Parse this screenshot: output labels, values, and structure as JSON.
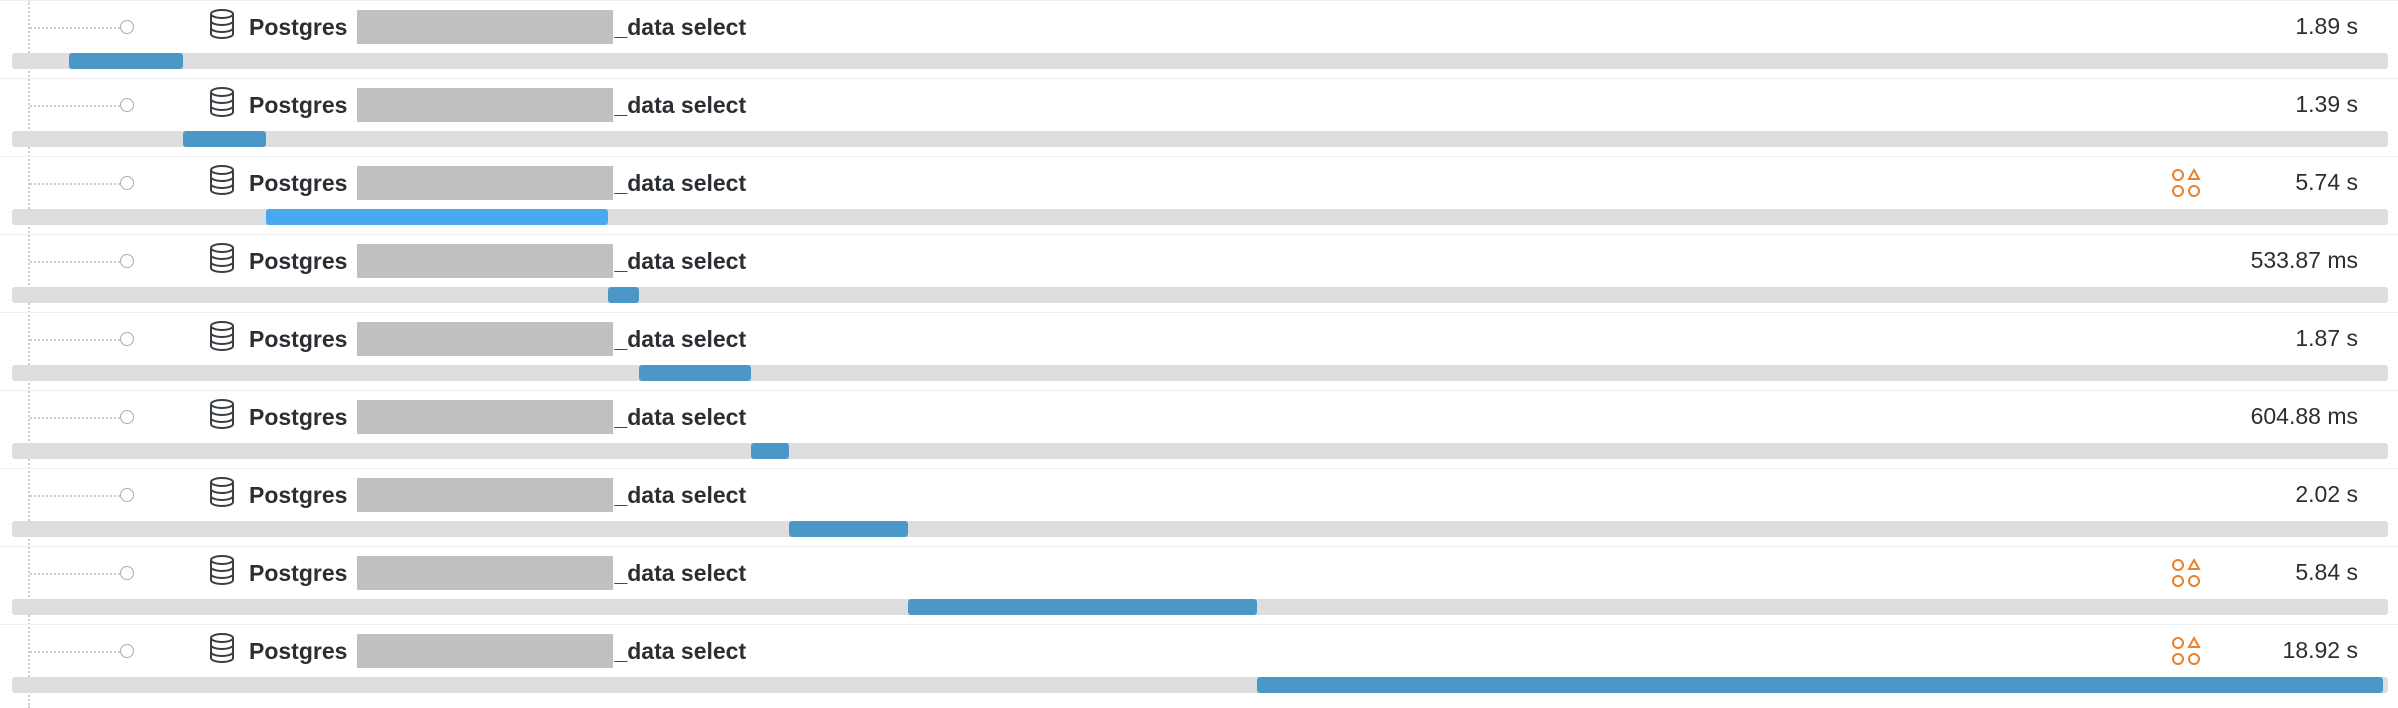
{
  "spans": [
    {
      "service": "Postgres",
      "operation": "_data select",
      "duration": "1.89 s",
      "has_warning": false,
      "bar_start": 0.024,
      "bar_end": 0.072
    },
    {
      "service": "Postgres",
      "operation": "_data select",
      "duration": "1.39 s",
      "has_warning": false,
      "bar_start": 0.072,
      "bar_end": 0.107
    },
    {
      "service": "Postgres",
      "operation": "_data select",
      "duration": "5.74 s",
      "has_warning": true,
      "bar_start": 0.107,
      "bar_end": 0.251,
      "highlight": true
    },
    {
      "service": "Postgres",
      "operation": "_data select",
      "duration": "533.87 ms",
      "has_warning": false,
      "bar_start": 0.251,
      "bar_end": 0.264
    },
    {
      "service": "Postgres",
      "operation": "_data select",
      "duration": "1.87 s",
      "has_warning": false,
      "bar_start": 0.264,
      "bar_end": 0.311
    },
    {
      "service": "Postgres",
      "operation": "_data select",
      "duration": "604.88 ms",
      "has_warning": false,
      "bar_start": 0.311,
      "bar_end": 0.327
    },
    {
      "service": "Postgres",
      "operation": "_data select",
      "duration": "2.02 s",
      "has_warning": false,
      "bar_start": 0.327,
      "bar_end": 0.377
    },
    {
      "service": "Postgres",
      "operation": "_data select",
      "duration": "5.84 s",
      "has_warning": true,
      "bar_start": 0.377,
      "bar_end": 0.524
    },
    {
      "service": "Postgres",
      "operation": "_data select",
      "duration": "18.92 s",
      "has_warning": true,
      "bar_start": 0.524,
      "bar_end": 0.998
    }
  ],
  "colors": {
    "bar": "#4a97c8",
    "bar_highlight": "#4aa8f0",
    "track": "#dcdedf",
    "warning": "#e8822a",
    "redacted": "#c0c0c0"
  },
  "icons": {
    "service": "database-icon",
    "warning": "shapes-warning-icon",
    "node": "circle-node-icon"
  }
}
